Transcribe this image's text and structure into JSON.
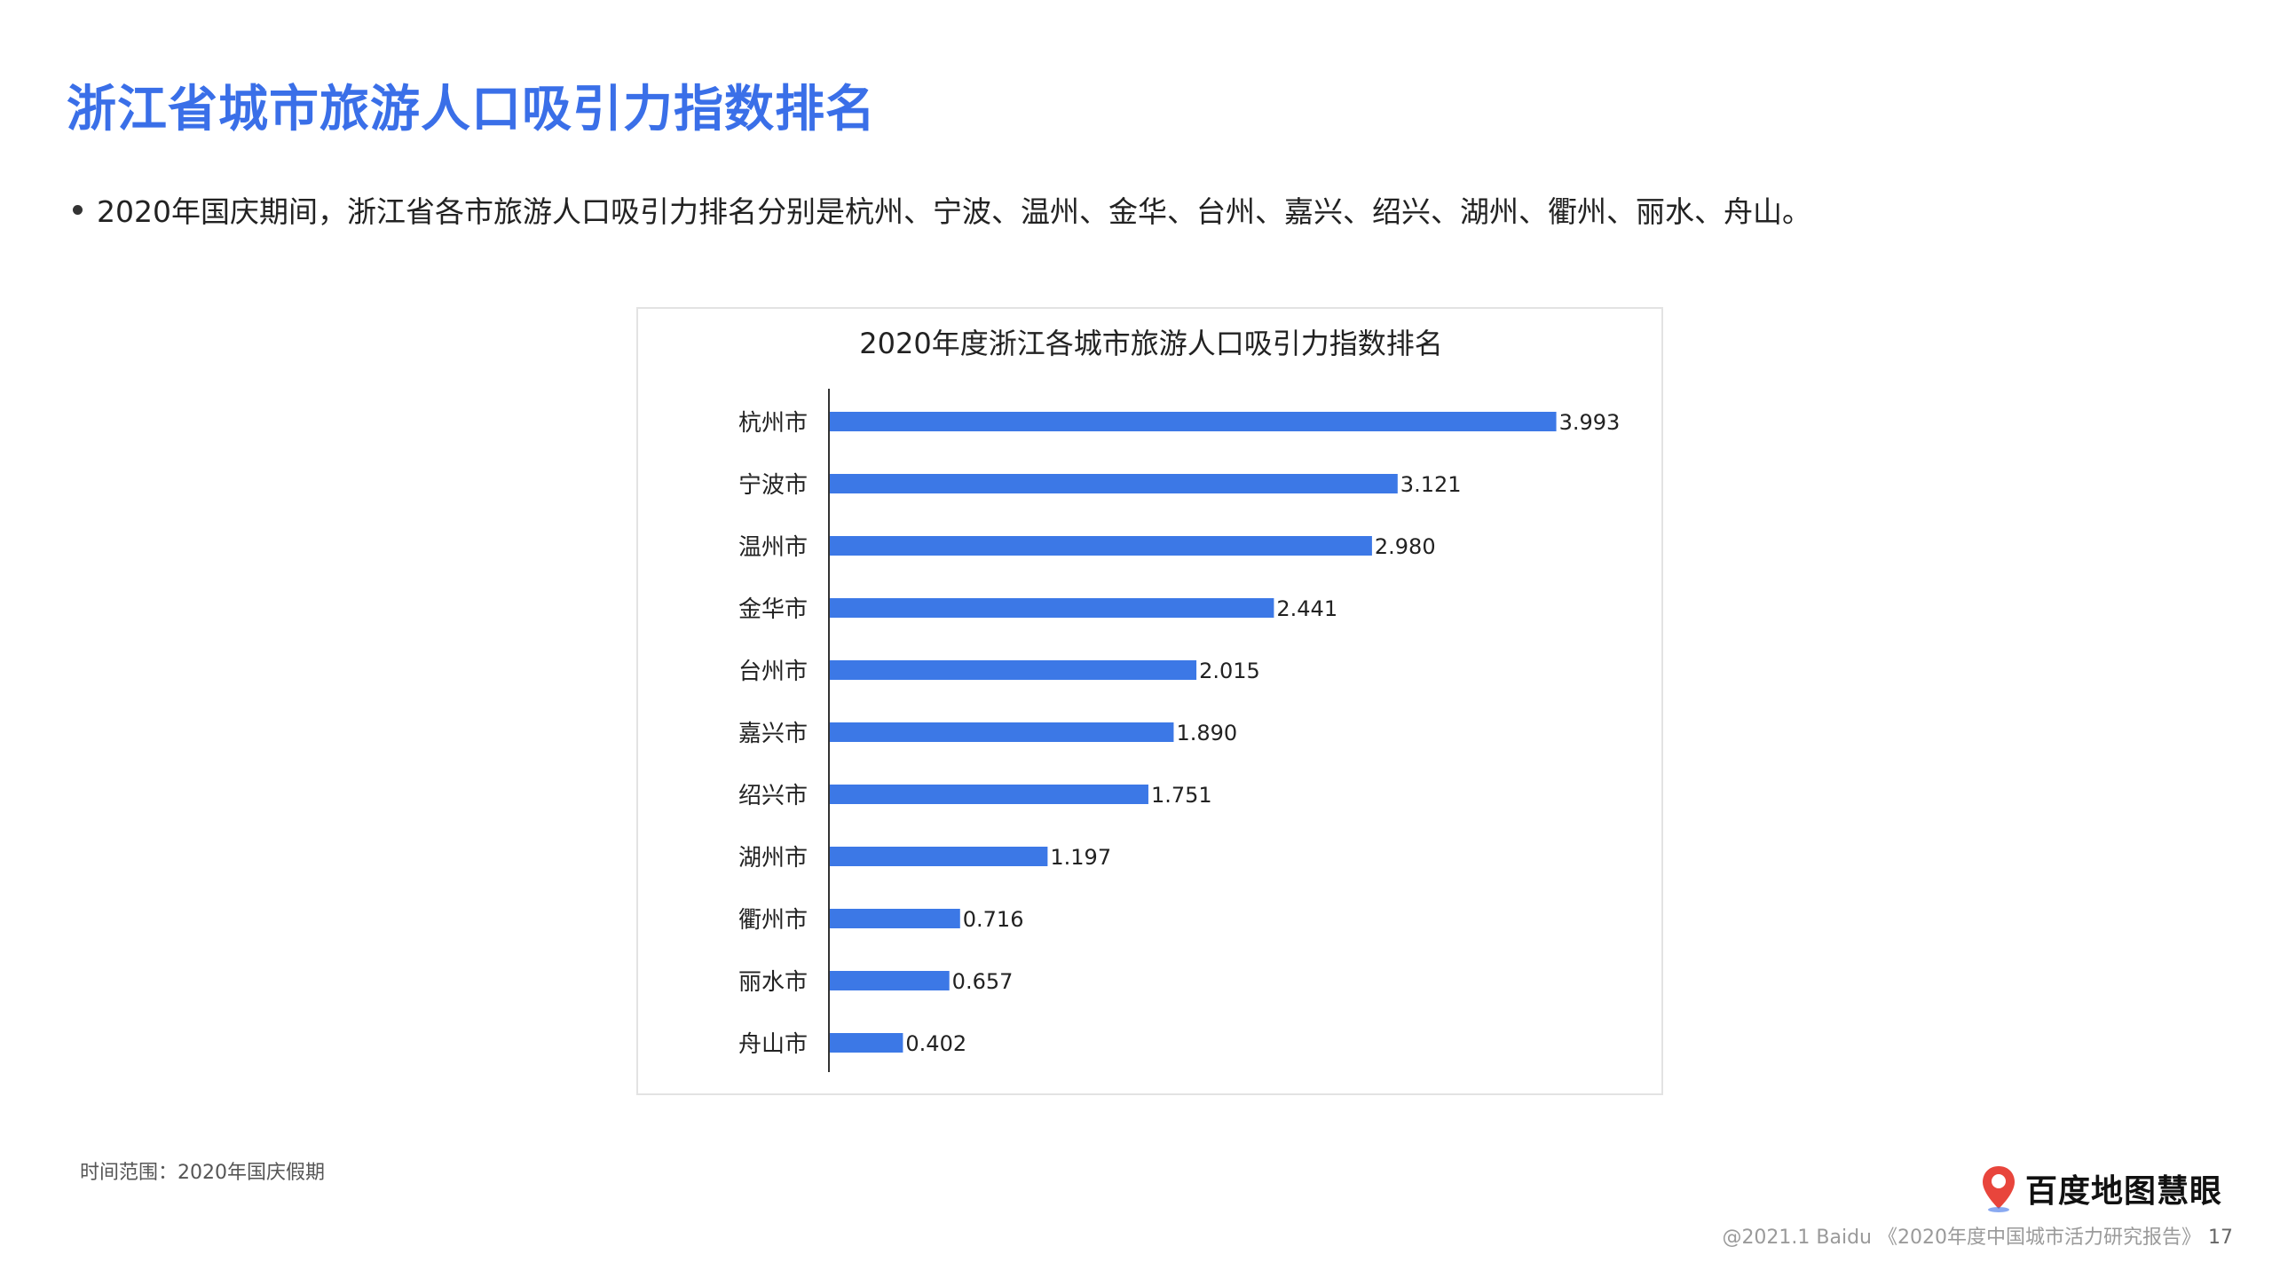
{
  "page": {
    "title": "浙江省城市旅游人口吸引力指数排名",
    "bullet": "2020年国庆期间，浙江省各市旅游人口吸引力排名分别是杭州、宁波、温州、金华、台州、嘉兴、绍兴、湖州、衢州、丽水、舟山。",
    "footnote": "时间范围：2020年国庆假期",
    "logo_text": "百度地图慧眼",
    "copyright": "@2021.1 Baidu 《2020年度中国城市活力研究报告》",
    "page_number": "17"
  },
  "colors": {
    "accent": "#3a6fe8",
    "bar": "#3c78e6",
    "axis": "#333333"
  },
  "chart_data": {
    "type": "bar",
    "orientation": "horizontal",
    "title": "2020年度浙江各城市旅游人口吸引力指数排名",
    "categories": [
      "杭州市",
      "宁波市",
      "温州市",
      "金华市",
      "台州市",
      "嘉兴市",
      "绍兴市",
      "湖州市",
      "衢州市",
      "丽水市",
      "舟山市"
    ],
    "values": [
      3.993,
      3.121,
      2.98,
      2.441,
      2.015,
      1.89,
      1.751,
      1.197,
      0.716,
      0.657,
      0.402
    ],
    "value_labels": [
      "3.993",
      "3.121",
      "2.980",
      "2.441",
      "2.015",
      "1.890",
      "1.751",
      "1.197",
      "0.716",
      "0.657",
      "0.402"
    ],
    "xlim": [
      0,
      4
    ],
    "grid": false,
    "legend": "none",
    "xlabel": "",
    "ylabel": ""
  }
}
